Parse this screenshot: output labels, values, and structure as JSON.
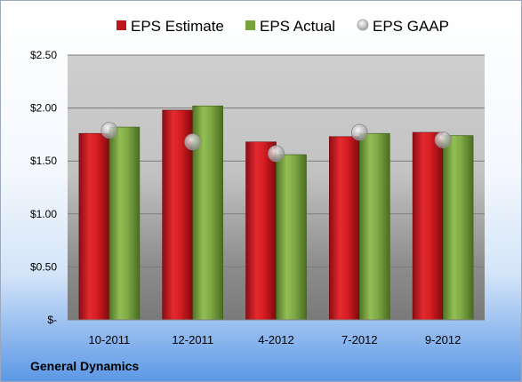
{
  "chart_data": {
    "type": "bar",
    "categories": [
      "10-2011",
      "12-2011",
      "4-2012",
      "7-2012",
      "9-2012"
    ],
    "series": [
      {
        "name": "EPS Estimate",
        "type": "bar",
        "color": "#c0141c",
        "values": [
          1.76,
          1.98,
          1.68,
          1.73,
          1.77
        ]
      },
      {
        "name": "EPS Actual",
        "type": "bar",
        "color": "#77a33a",
        "values": [
          1.82,
          2.02,
          1.56,
          1.76,
          1.74
        ]
      },
      {
        "name": "EPS GAAP",
        "type": "scatter",
        "color": "#b8b8b8",
        "values": [
          1.79,
          1.68,
          1.57,
          1.77,
          1.7
        ]
      }
    ],
    "y_ticks": [
      {
        "value": 0,
        "label": "$-"
      },
      {
        "value": 0.5,
        "label": "$0.50"
      },
      {
        "value": 1.0,
        "label": "$1.00"
      },
      {
        "value": 1.5,
        "label": "$1.50"
      },
      {
        "value": 2.0,
        "label": "$2.00"
      },
      {
        "value": 2.5,
        "label": "$2.50"
      }
    ],
    "ylim": [
      0,
      2.5
    ],
    "grid": true,
    "legend_position": "top",
    "company": "General Dynamics"
  }
}
